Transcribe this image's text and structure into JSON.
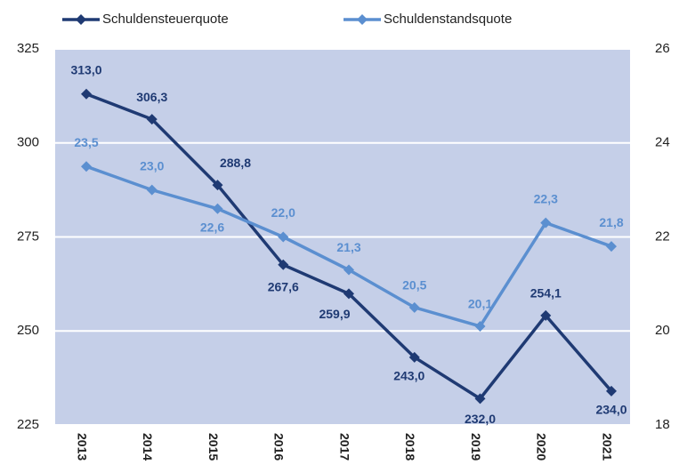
{
  "chart_data": {
    "type": "line",
    "categories": [
      "2013",
      "2014",
      "2015",
      "2016",
      "2017",
      "2018",
      "2019",
      "2020",
      "2021"
    ],
    "series": [
      {
        "name": "Schuldensteuerquote",
        "color": "#1f3a73",
        "values": [
          313.0,
          306.3,
          288.8,
          267.6,
          259.9,
          243.0,
          232.0,
          254.1,
          234.0
        ],
        "value_labels": [
          "313,0",
          "306,3",
          "288,8",
          "267,6",
          "259,9",
          "243,0",
          "232,0",
          "254,1",
          "234,0"
        ]
      },
      {
        "name": "Schuldenstandsquote",
        "color": "#5b8fd0",
        "axis": "y2",
        "values": [
          23.5,
          23.0,
          22.6,
          22.0,
          21.3,
          20.5,
          20.1,
          22.3,
          21.8
        ],
        "value_labels": [
          "23,5",
          "23,0",
          "22,6",
          "22,0",
          "21,3",
          "20,5",
          "20,1",
          "22,3",
          "21,8"
        ]
      }
    ],
    "ylim": [
      225,
      325
    ],
    "yticks": [
      225,
      250,
      275,
      300,
      325
    ],
    "y2lim": [
      18,
      26
    ],
    "y2ticks": [
      18,
      20,
      22,
      24,
      26
    ],
    "grid": true,
    "legend": "top",
    "background": "#c5cfe8"
  }
}
